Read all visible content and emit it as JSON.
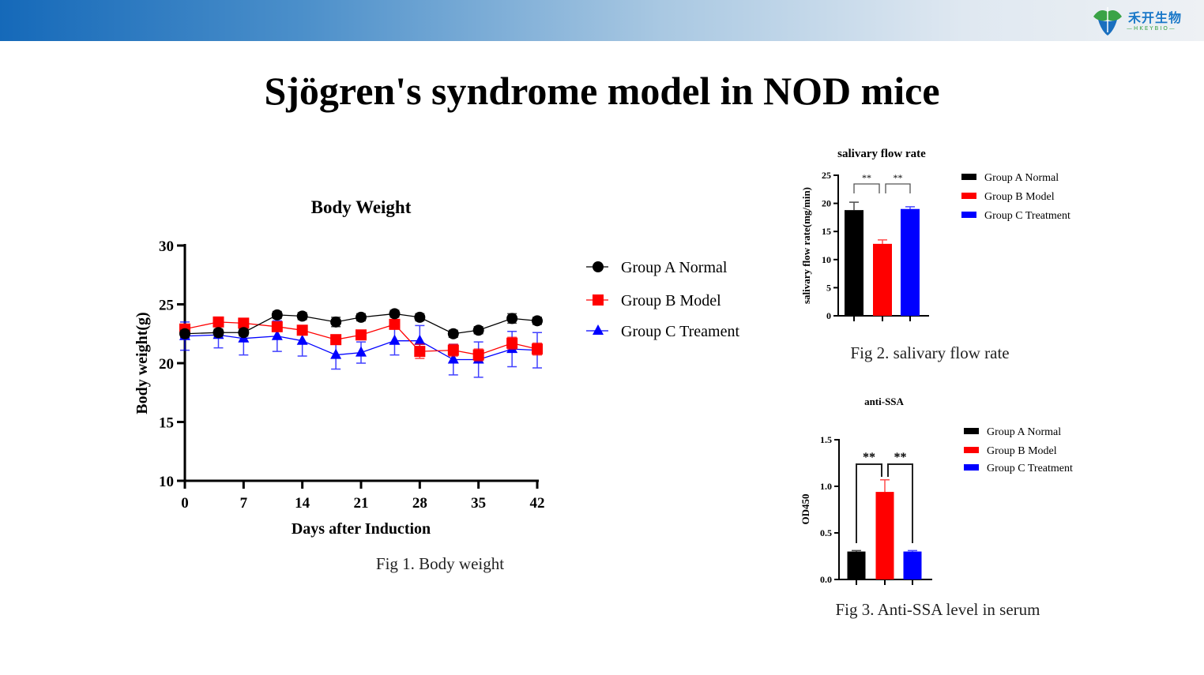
{
  "header": {
    "logo_text": "禾开生物",
    "logo_sub": "—HKEYBIO—",
    "accent": "#1569b9"
  },
  "slide_title": "Sjögren's syndrome model in NOD mice",
  "captions": {
    "fig1": "Fig 1. Body weight",
    "fig2": "Fig 2. salivary flow rate",
    "fig3": "Fig 3. Anti-SSA level in serum"
  },
  "chart_data": [
    {
      "type": "line",
      "title": "Body Weight",
      "xlabel": "Days after Induction",
      "ylabel": "Body weight(g)",
      "xlim": [
        0,
        42
      ],
      "ylim": [
        10,
        30
      ],
      "xticks": [
        0,
        7,
        14,
        21,
        28,
        35,
        42
      ],
      "yticks": [
        10,
        15,
        20,
        25,
        30
      ],
      "legend": "right",
      "x": [
        0,
        4,
        7,
        11,
        14,
        18,
        21,
        25,
        28,
        32,
        35,
        39,
        42
      ],
      "series": [
        {
          "name": "Group A Normal",
          "color": "#000000",
          "marker": "circle",
          "values": [
            22.5,
            22.6,
            22.6,
            24.1,
            24.0,
            23.5,
            23.9,
            24.2,
            23.9,
            22.5,
            22.8,
            23.8,
            23.6
          ],
          "error": [
            0.3,
            0.3,
            0.3,
            0.3,
            0.3,
            0.4,
            0.3,
            0.3,
            0.3,
            0.3,
            0.3,
            0.4,
            0.3
          ]
        },
        {
          "name": "Group B Model",
          "color": "#ff0000",
          "marker": "square",
          "values": [
            22.9,
            23.5,
            23.4,
            23.1,
            22.8,
            22.0,
            22.4,
            23.3,
            21.0,
            21.1,
            20.7,
            21.7,
            21.2
          ],
          "error": [
            0.4,
            0.3,
            0.3,
            0.4,
            0.4,
            0.3,
            0.4,
            0.4,
            0.6,
            0.5,
            0.5,
            0.5,
            0.5
          ]
        },
        {
          "name": "Group C Treament",
          "color": "#0000ff",
          "marker": "triangle",
          "values": [
            22.3,
            22.4,
            22.1,
            22.3,
            21.9,
            20.7,
            20.9,
            21.9,
            21.9,
            20.3,
            20.3,
            21.2,
            21.1
          ],
          "error": [
            1.2,
            1.1,
            1.4,
            1.3,
            1.3,
            1.2,
            0.9,
            1.2,
            1.3,
            1.3,
            1.5,
            1.5,
            1.5
          ]
        }
      ]
    },
    {
      "type": "bar",
      "title": "salivary flow rate",
      "ylabel": "salivary flow rate(mg/min)",
      "ylim": [
        0,
        25
      ],
      "yticks": [
        0,
        5,
        10,
        15,
        20,
        25
      ],
      "legend": "right",
      "categories": [
        "Group A Normal",
        "Group B Model",
        "Group C Treatment"
      ],
      "values": [
        18.8,
        12.8,
        19.0
      ],
      "error": [
        1.4,
        0.7,
        0.4
      ],
      "colors": [
        "#000000",
        "#ff0000",
        "#0000ff"
      ],
      "significance": [
        {
          "pair": [
            0,
            1
          ],
          "label": "**"
        },
        {
          "pair": [
            1,
            2
          ],
          "label": "**"
        }
      ]
    },
    {
      "type": "bar",
      "title": "anti-SSA",
      "ylabel": "OD450",
      "ylim": [
        0,
        1.5
      ],
      "yticks": [
        "0.0",
        "0.5",
        "1.0",
        "1.5"
      ],
      "legend": "right",
      "categories": [
        "Group A Normal",
        "Group B Model",
        "Group C Treatment"
      ],
      "values": [
        0.3,
        0.94,
        0.3
      ],
      "error": [
        0.01,
        0.13,
        0.01
      ],
      "colors": [
        "#000000",
        "#ff0000",
        "#0000ff"
      ],
      "significance": [
        {
          "pair": [
            0,
            1
          ],
          "label": "**"
        },
        {
          "pair": [
            1,
            2
          ],
          "label": "**"
        }
      ]
    }
  ]
}
